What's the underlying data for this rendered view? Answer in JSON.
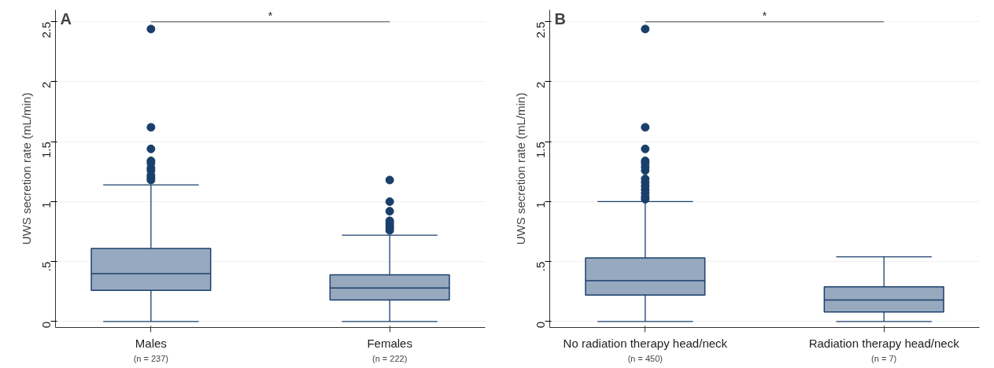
{
  "chart_data": [
    {
      "type": "box",
      "title": "A",
      "ylabel": "UWS secretion rate (mL/min)",
      "categories": [
        "Males",
        "Females"
      ],
      "series": [
        {
          "color": "#97a9bf",
          "boxes": [
            {
              "low": 0,
              "q1": 0.26,
              "median": 0.4,
              "q3": 0.61,
              "high": 1.14,
              "outliers": [
                1.18,
                1.2,
                1.22,
                1.26,
                1.28,
                1.32,
                1.34,
                1.44,
                1.62,
                2.44
              ]
            },
            {
              "low": 0,
              "q1": 0.18,
              "median": 0.28,
              "q3": 0.39,
              "high": 0.72,
              "outliers": [
                0.76,
                0.78,
                0.8,
                0.82,
                0.84,
                0.92,
                1.0,
                1.18
              ]
            }
          ]
        }
      ],
      "ylim": [
        -0.05,
        2.6
      ],
      "yticks": [
        0,
        {
          "value": 0.5,
          "label": ".5"
        },
        1,
        1.5,
        2,
        2.5
      ],
      "grid": "y",
      "marker": "circle",
      "annotations": [
        "*",
        "(n = 237)",
        "(n = 222)"
      ]
    },
    {
      "type": "box",
      "title": "B",
      "ylabel": "UWS secretion rate (mL/min)",
      "categories": [
        "No radiation therapy head/neck",
        "Radiation therapy head/neck"
      ],
      "series": [
        {
          "color": "#97a9bf",
          "boxes": [
            {
              "low": 0,
              "q1": 0.22,
              "median": 0.34,
              "q3": 0.53,
              "high": 1.0,
              "outliers": [
                1.02,
                1.04,
                1.07,
                1.1,
                1.13,
                1.16,
                1.19,
                1.26,
                1.29,
                1.32,
                1.34,
                1.44,
                1.62,
                2.44
              ]
            },
            {
              "low": 0,
              "q1": 0.08,
              "median": 0.18,
              "q3": 0.29,
              "high": 0.54
            }
          ]
        }
      ],
      "ylim": [
        -0.05,
        2.6
      ],
      "yticks": [
        0,
        {
          "value": 0.5,
          "label": ".5"
        },
        1,
        1.5,
        2,
        2.5
      ],
      "grid": "y",
      "marker": "circle",
      "annotations": [
        "*",
        "(n = 450)",
        "(n = 7)"
      ]
    }
  ]
}
